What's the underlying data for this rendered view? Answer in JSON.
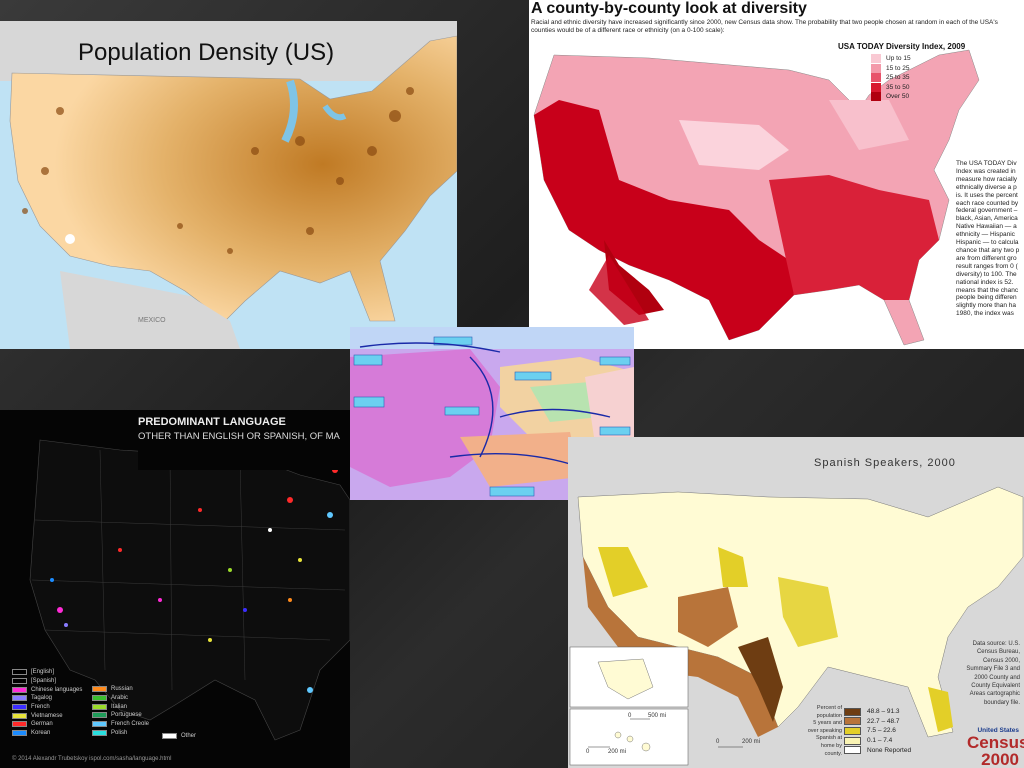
{
  "density": {
    "title": "Population Density (US)",
    "label_mexico": "MEXICO"
  },
  "diversity": {
    "headline": "A county-by-county look at diversity",
    "subhead": "Racial and ethnic diversity have increased significantly since 2000, new Census data show. The probability that two people chosen at random in each of the USA's counties would be of a different race or ethnicity (on a 0-100 scale):",
    "legend_title": "USA TODAY Diversity Index, 2009",
    "legend": [
      {
        "label": "Up to 15",
        "color": "#f9c9d3"
      },
      {
        "label": "15 to 25",
        "color": "#f39aaa"
      },
      {
        "label": "25 to 35",
        "color": "#e8546b"
      },
      {
        "label": "35 to 50",
        "color": "#d8192f"
      },
      {
        "label": "Over 50",
        "color": "#b0000f"
      }
    ],
    "note": "The USA TODAY Div\nIndex was created in\nmeasure how racially\nethnically diverse a p\nis. It uses the percent\neach race counted by\nfederal government –\nblack, Asian, America\nNative Hawaiian — a\nethnicity — Hispanic\nHispanic — to calcula\nchance that any two p\nare from different gro\nresult ranges from 0 (\ndiversity) to 100. The\nnational index is 52.\nmeans that the chanc\npeople being differen\nslightly more than ha\n1980, the index was"
  },
  "language": {
    "title1": "PREDOMINANT LANGUAGE",
    "title2": "OTHER THAN ENGLISH OR SPANISH, OF MA",
    "legend": [
      {
        "label": "[English]",
        "color": "#000000"
      },
      {
        "label": "[Spanish]",
        "color": "#000000"
      },
      {
        "label": "Chinese languages",
        "color": "#ff2bd6"
      },
      {
        "label": "Tagalog",
        "color": "#8a7cff"
      },
      {
        "label": "French",
        "color": "#3b2dff"
      },
      {
        "label": "Vietnamese",
        "color": "#e8e43a"
      },
      {
        "label": "German",
        "color": "#ff2a2a"
      },
      {
        "label": "Korean",
        "color": "#1c8cff"
      }
    ],
    "legend2": [
      {
        "label": "Russian",
        "color": "#ff8a1c"
      },
      {
        "label": "Arabic",
        "color": "#3bbd2f"
      },
      {
        "label": "Italian",
        "color": "#9bdc2b"
      },
      {
        "label": "Portuguese",
        "color": "#1f9c5a"
      },
      {
        "label": "French Creole",
        "color": "#5fc8ff"
      },
      {
        "label": "Polish",
        "color": "#2ae0e0"
      }
    ],
    "other_label": "Other",
    "credit": "© 2014 Alexandr Trubetskoy     ispol.com/sasha/language.html"
  },
  "spanish": {
    "title": "Spanish Speakers, 2000",
    "source": "Data source: U.S.\nCensus Bureau,\nCensus 2000,\nSummary File 3 and\n2000 County and\nCounty Equivalent\nAreas cartographic\nboundary file.",
    "desc": "Percent of\npopulation\n5 years and\nover speaking\nSpanish at\nhome by\ncounty.",
    "legend": [
      {
        "label": "48.8 – 91.3",
        "color": "#6e3d12"
      },
      {
        "label": "22.7 – 48.7",
        "color": "#b8743a"
      },
      {
        "label": "7.5 – 22.6",
        "color": "#e3cf28"
      },
      {
        "label": "0.1 – 7.4",
        "color": "#faf4b4"
      },
      {
        "label": "None Reported",
        "color": "#ffffff"
      }
    ],
    "logo_top": "United States",
    "logo_main": "Census",
    "logo_year": "2000",
    "scale1": "500 mi",
    "scale2": "200 mi",
    "scale3": "200 mi",
    "zero": "0"
  }
}
